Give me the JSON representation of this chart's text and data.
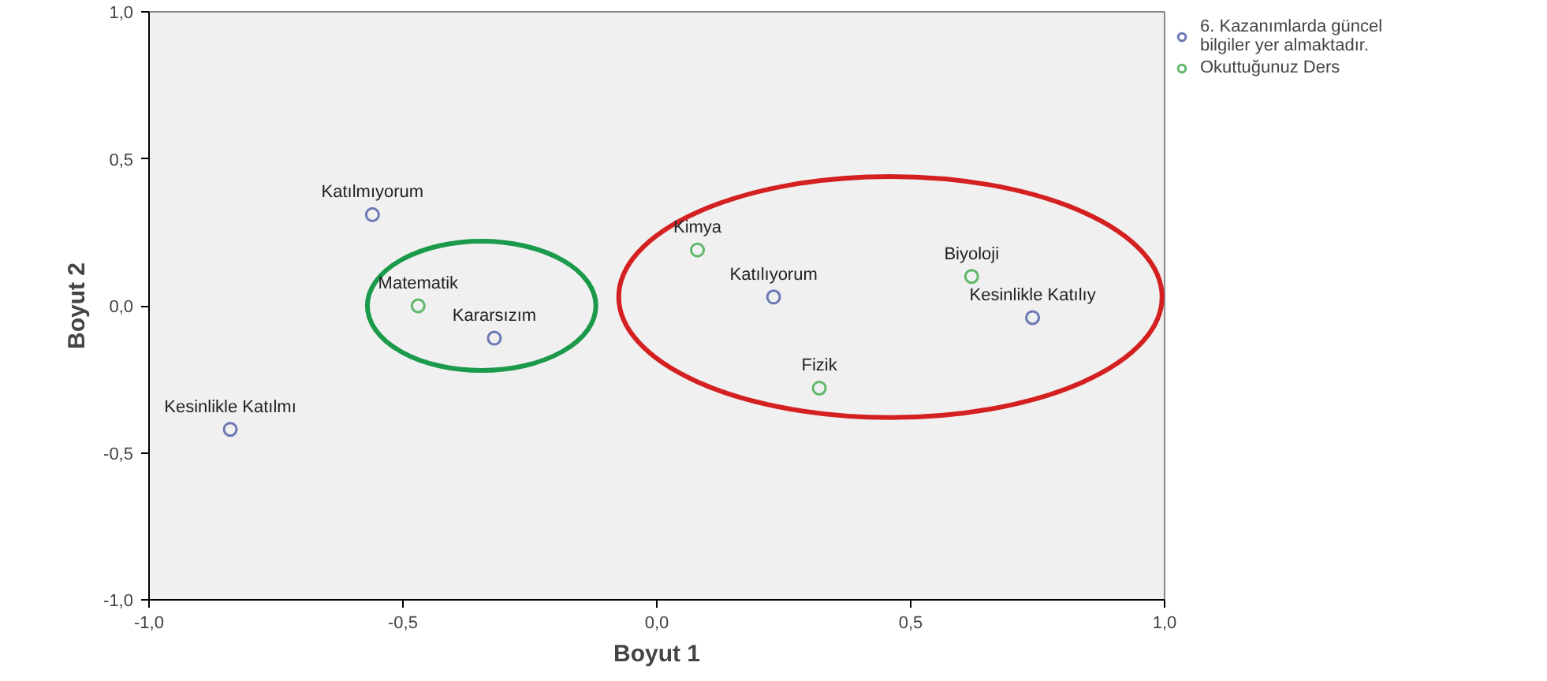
{
  "chart_data": {
    "type": "scatter",
    "xlabel": "Boyut 1",
    "ylabel": "Boyut 2",
    "xlim": [
      -1.0,
      1.0
    ],
    "ylim": [
      -1.0,
      1.0
    ],
    "xticks": [
      {
        "value": -1.0,
        "label": "-1,0"
      },
      {
        "value": -0.5,
        "label": "-0,5"
      },
      {
        "value": 0.0,
        "label": "0,0"
      },
      {
        "value": 0.5,
        "label": "0,5"
      },
      {
        "value": 1.0,
        "label": "1,0"
      }
    ],
    "yticks": [
      {
        "value": -1.0,
        "label": "-1,0"
      },
      {
        "value": -0.5,
        "label": "-0,5"
      },
      {
        "value": 0.0,
        "label": "0,0"
      },
      {
        "value": 0.5,
        "label": "0,5"
      },
      {
        "value": 1.0,
        "label": "1,0"
      }
    ],
    "grid": false,
    "legend": "top right",
    "marker": "circle",
    "series": [
      {
        "name": "6. Kazanımlarda güncel bilgiler yer almaktadır.",
        "color": "#6b78b4",
        "x": [
          -0.56,
          -0.32,
          -0.84,
          0.23,
          0.74
        ],
        "values": [
          0.31,
          -0.11,
          -0.42,
          0.03,
          -0.04
        ]
      },
      {
        "name": "Okuttuğunuz Ders",
        "color": "#5fb86a",
        "x": [
          -0.47,
          0.08,
          0.62,
          0.32
        ],
        "values": [
          0.0,
          0.19,
          0.1,
          -0.28
        ]
      }
    ],
    "annotations": [
      {
        "text": "Katılmıyorum",
        "x": -0.56,
        "y": 0.31
      },
      {
        "text": "Kararsızım",
        "x": -0.32,
        "y": -0.11
      },
      {
        "text": "Kesinlikle Katılmı",
        "x": -0.84,
        "y": -0.42
      },
      {
        "text": "Katılıyorum",
        "x": 0.23,
        "y": 0.03
      },
      {
        "text": "Kesinlikle Katılıy",
        "x": 0.74,
        "y": -0.04
      },
      {
        "text": "Matematik",
        "x": -0.47,
        "y": 0.0
      },
      {
        "text": "Kimya",
        "x": 0.08,
        "y": 0.19
      },
      {
        "text": "Biyoloji",
        "x": 0.62,
        "y": 0.1
      },
      {
        "text": "Fizik",
        "x": 0.32,
        "y": -0.28
      }
    ]
  }
}
